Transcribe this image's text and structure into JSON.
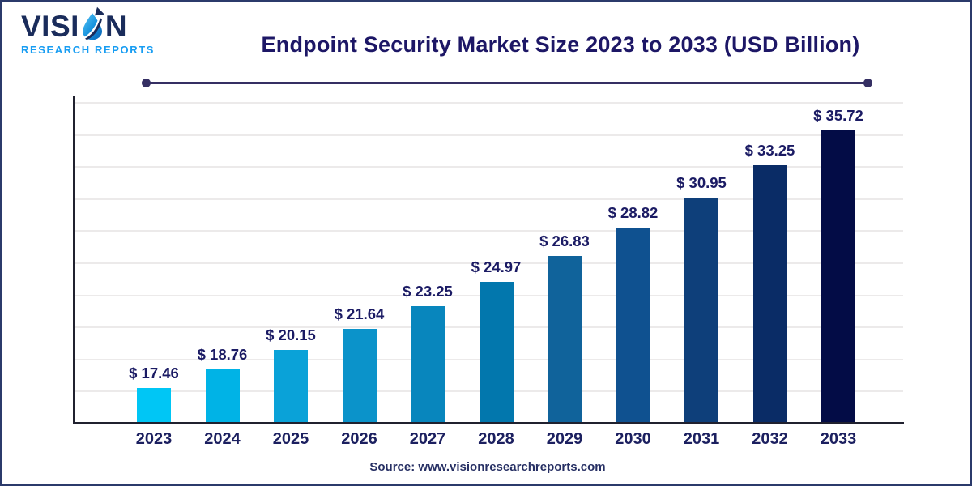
{
  "page": {
    "background": "#ffffff",
    "border_color": "#2b3a6b"
  },
  "header": {
    "logo": {
      "brand_prefix": "VISI",
      "brand_suffix": "N",
      "subtitle": "RESEARCH REPORTS",
      "brand_color": "#1a2c5b",
      "subtitle_color": "#189df2"
    },
    "title": "Endpoint Security Market Size 2023 to 2033 (USD Billion)",
    "title_color": "#1d1766",
    "divider_color": "#352f63"
  },
  "chart_data": {
    "type": "bar",
    "title": "Endpoint Security Market Size 2023 to 2033 (USD Billion)",
    "unit": "USD Billion",
    "categories": [
      "2023",
      "2024",
      "2025",
      "2026",
      "2027",
      "2028",
      "2029",
      "2030",
      "2031",
      "2032",
      "2033"
    ],
    "values": [
      17.46,
      18.76,
      20.15,
      21.64,
      23.25,
      24.97,
      26.83,
      28.82,
      30.95,
      33.25,
      35.72
    ],
    "value_labels": [
      "$ 17.46",
      "$ 18.76",
      "$ 20.15",
      "$ 21.64",
      "$ 23.25",
      "$ 24.97",
      "$ 26.83",
      "$ 28.82",
      "$ 30.95",
      "$ 33.25",
      "$ 35.72"
    ],
    "bar_colors": [
      "#00c6f5",
      "#00b3e6",
      "#0aa2d8",
      "#0b93ca",
      "#0886bd",
      "#0277ad",
      "#10639b",
      "#0f5190",
      "#0e3f7a",
      "#0a2c66",
      "#030c46"
    ],
    "ylim": [
      15,
      37.7
    ],
    "gridline_count": 10,
    "gridline_color": "#eceaea",
    "axis_color": "#20212f",
    "label_color": "#1b1b64",
    "xlabel": "",
    "ylabel": "",
    "legend": "none",
    "grid": "horizontal"
  },
  "footer": {
    "source": "Source: www.visionresearchreports.com",
    "color": "#273064"
  }
}
